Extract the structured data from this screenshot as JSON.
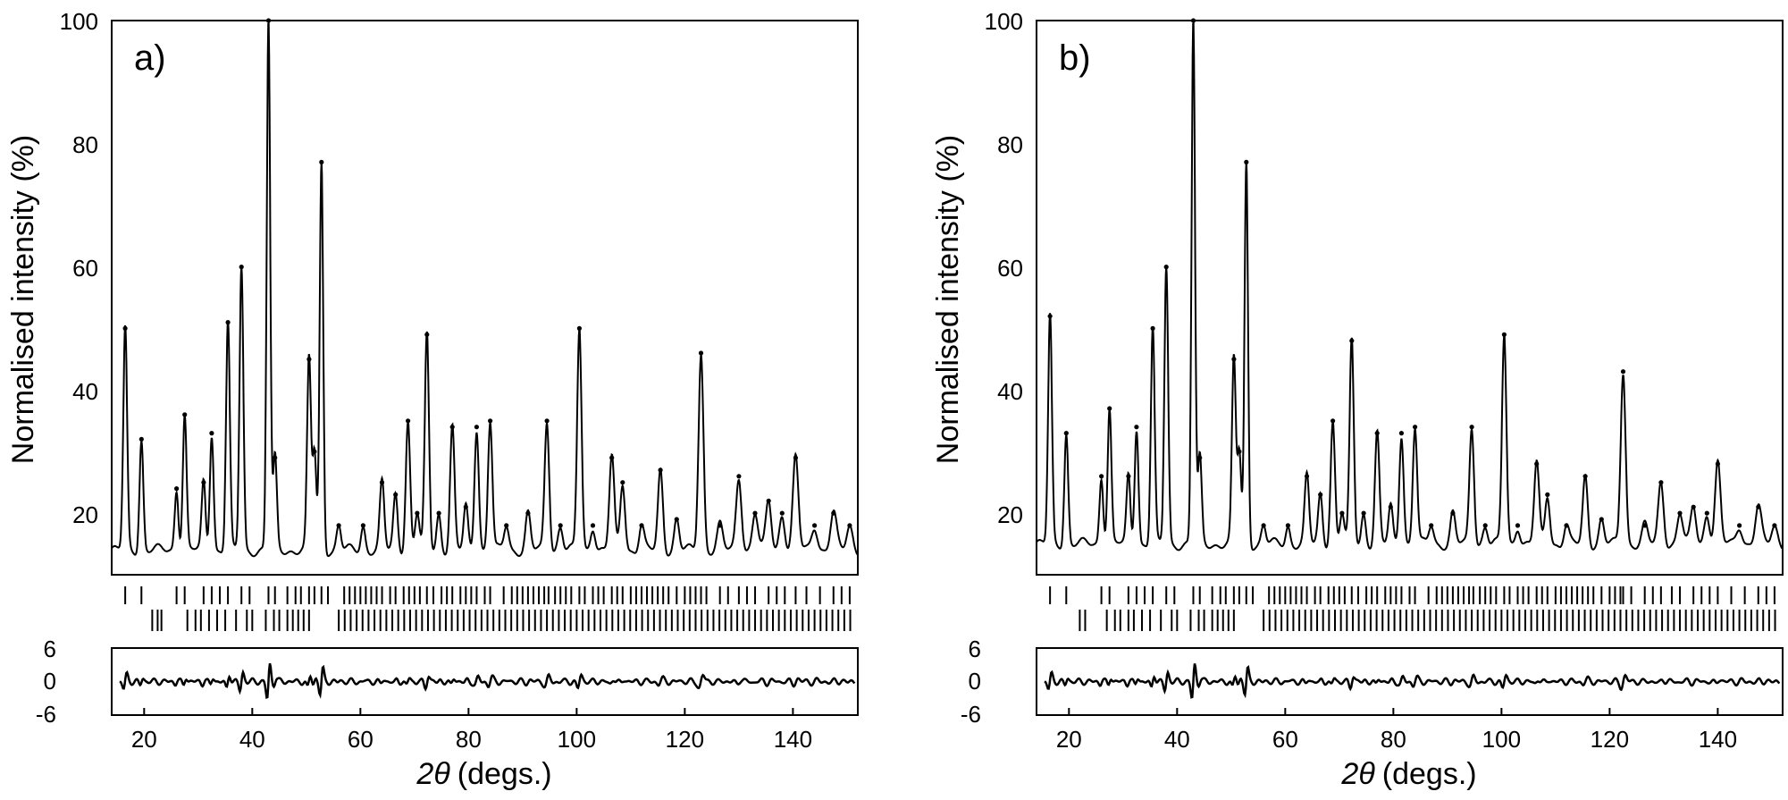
{
  "chart_data": [
    {
      "panel_label": "a)",
      "type": "line",
      "xlabel_symbol": "2θ",
      "xlabel_unit": "(degs.)",
      "ylabel": "Normalised intensity (%)",
      "xlim": [
        14,
        152
      ],
      "ylim": [
        10,
        100
      ],
      "x_ticks": [
        "20",
        "40",
        "60",
        "80",
        "100",
        "120",
        "140"
      ],
      "y_ticks": [
        "20",
        "40",
        "60",
        "80",
        "100"
      ],
      "diff_ylim": [
        -6,
        6
      ],
      "diff_ticks": [
        "6",
        "0",
        "-6"
      ],
      "background": 14,
      "peaks": [
        {
          "x": 16.5,
          "y": 50,
          "w": 0.35
        },
        {
          "x": 19.5,
          "y": 32,
          "w": 0.35
        },
        {
          "x": 26.0,
          "y": 24,
          "w": 0.35
        },
        {
          "x": 27.5,
          "y": 36,
          "w": 0.35
        },
        {
          "x": 31.0,
          "y": 25,
          "w": 0.35
        },
        {
          "x": 32.5,
          "y": 33,
          "w": 0.35
        },
        {
          "x": 35.5,
          "y": 51,
          "w": 0.35
        },
        {
          "x": 38.0,
          "y": 60,
          "w": 0.35
        },
        {
          "x": 43.0,
          "y": 100,
          "w": 0.32
        },
        {
          "x": 44.2,
          "y": 29,
          "w": 0.35
        },
        {
          "x": 50.5,
          "y": 45,
          "w": 0.35
        },
        {
          "x": 51.5,
          "y": 30,
          "w": 0.35
        },
        {
          "x": 52.8,
          "y": 77,
          "w": 0.32
        },
        {
          "x": 56.0,
          "y": 18,
          "w": 0.4
        },
        {
          "x": 60.5,
          "y": 18,
          "w": 0.4
        },
        {
          "x": 64.0,
          "y": 25,
          "w": 0.4
        },
        {
          "x": 66.5,
          "y": 23,
          "w": 0.4
        },
        {
          "x": 68.8,
          "y": 35,
          "w": 0.4
        },
        {
          "x": 70.5,
          "y": 20,
          "w": 0.4
        },
        {
          "x": 72.3,
          "y": 49,
          "w": 0.38
        },
        {
          "x": 74.5,
          "y": 20,
          "w": 0.4
        },
        {
          "x": 77.0,
          "y": 34,
          "w": 0.4
        },
        {
          "x": 79.5,
          "y": 21,
          "w": 0.4
        },
        {
          "x": 81.5,
          "y": 34,
          "w": 0.4
        },
        {
          "x": 84.0,
          "y": 35,
          "w": 0.4
        },
        {
          "x": 87.0,
          "y": 18,
          "w": 0.45
        },
        {
          "x": 91.0,
          "y": 20,
          "w": 0.45
        },
        {
          "x": 94.5,
          "y": 35,
          "w": 0.42
        },
        {
          "x": 97.0,
          "y": 18,
          "w": 0.45
        },
        {
          "x": 100.5,
          "y": 50,
          "w": 0.4
        },
        {
          "x": 103.0,
          "y": 18,
          "w": 0.45
        },
        {
          "x": 106.5,
          "y": 29,
          "w": 0.45
        },
        {
          "x": 108.5,
          "y": 25,
          "w": 0.45
        },
        {
          "x": 112.0,
          "y": 18,
          "w": 0.45
        },
        {
          "x": 115.5,
          "y": 27,
          "w": 0.45
        },
        {
          "x": 118.5,
          "y": 19,
          "w": 0.45
        },
        {
          "x": 123.0,
          "y": 46,
          "w": 0.45
        },
        {
          "x": 126.5,
          "y": 18,
          "w": 0.5
        },
        {
          "x": 130.0,
          "y": 26,
          "w": 0.5
        },
        {
          "x": 133.0,
          "y": 20,
          "w": 0.5
        },
        {
          "x": 135.5,
          "y": 22,
          "w": 0.5
        },
        {
          "x": 138.0,
          "y": 20,
          "w": 0.5
        },
        {
          "x": 140.5,
          "y": 29,
          "w": 0.5
        },
        {
          "x": 144.0,
          "y": 18,
          "w": 0.55
        },
        {
          "x": 147.5,
          "y": 20,
          "w": 0.55
        },
        {
          "x": 150.5,
          "y": 18,
          "w": 0.55
        }
      ],
      "reflections_phase1": [
        16.5,
        19.5,
        26.0,
        27.5,
        31.0,
        32.5,
        34.0,
        35.5,
        38.0,
        39.5,
        43.0,
        44.2,
        46.5,
        48.0,
        49.0,
        50.5,
        51.5,
        52.8,
        54.0,
        57.0,
        58.0,
        59.0,
        60.0,
        61.0,
        62.0,
        63.0,
        64.0,
        65.5,
        66.5,
        68.0,
        69.0,
        70.0,
        71.0,
        72.3,
        73.5,
        75.0,
        76.0,
        77.0,
        78.5,
        79.5,
        80.5,
        81.5,
        83.0,
        84.0,
        86.5,
        88.0,
        89.0,
        90.0,
        91.0,
        92.0,
        93.0,
        94.0,
        94.8,
        96.0,
        97.0,
        98.0,
        99.0,
        100.5,
        101.5,
        103.0,
        104.0,
        105.0,
        106.5,
        107.5,
        108.5,
        110.0,
        111.0,
        112.0,
        113.0,
        114.0,
        115.0,
        116.0,
        117.0,
        118.5,
        120.0,
        121.0,
        122.0,
        123.0,
        124.0,
        126.5,
        128.0,
        130.0,
        131.5,
        133.0,
        135.5,
        137.0,
        138.5,
        140.5,
        142.5,
        145.0,
        147.5,
        149.0,
        150.5
      ],
      "reflections_phase2": [
        21.5,
        22.5,
        23.2,
        28.0,
        29.5,
        30.5,
        32.0,
        33.5,
        35.0,
        37.0,
        39.0,
        40.0,
        42.5,
        44.0,
        45.0,
        46.5,
        47.5,
        48.5,
        49.5,
        50.5
      ]
    },
    {
      "panel_label": "b)",
      "type": "line",
      "xlabel_symbol": "2θ",
      "xlabel_unit": "(degs.)",
      "ylabel": "Normalised intensity (%)",
      "xlim": [
        14,
        152
      ],
      "ylim": [
        10,
        100
      ],
      "x_ticks": [
        "20",
        "40",
        "60",
        "80",
        "100",
        "120",
        "140"
      ],
      "y_ticks": [
        "20",
        "40",
        "60",
        "80",
        "100"
      ],
      "diff_ylim": [
        -6,
        6
      ],
      "diff_ticks": [
        "6",
        "0",
        "-6"
      ],
      "background": 15,
      "peaks": [
        {
          "x": 16.5,
          "y": 52,
          "w": 0.35
        },
        {
          "x": 19.5,
          "y": 33,
          "w": 0.35
        },
        {
          "x": 26.0,
          "y": 26,
          "w": 0.35
        },
        {
          "x": 27.5,
          "y": 37,
          "w": 0.35
        },
        {
          "x": 31.0,
          "y": 26,
          "w": 0.35
        },
        {
          "x": 32.5,
          "y": 34,
          "w": 0.35
        },
        {
          "x": 35.5,
          "y": 50,
          "w": 0.35
        },
        {
          "x": 38.0,
          "y": 60,
          "w": 0.35
        },
        {
          "x": 43.0,
          "y": 100,
          "w": 0.32
        },
        {
          "x": 44.2,
          "y": 29,
          "w": 0.35
        },
        {
          "x": 50.5,
          "y": 45,
          "w": 0.35
        },
        {
          "x": 51.5,
          "y": 30,
          "w": 0.35
        },
        {
          "x": 52.8,
          "y": 77,
          "w": 0.32
        },
        {
          "x": 56.0,
          "y": 18,
          "w": 0.4
        },
        {
          "x": 60.5,
          "y": 18,
          "w": 0.4
        },
        {
          "x": 64.0,
          "y": 26,
          "w": 0.4
        },
        {
          "x": 66.5,
          "y": 23,
          "w": 0.4
        },
        {
          "x": 68.8,
          "y": 35,
          "w": 0.4
        },
        {
          "x": 70.5,
          "y": 20,
          "w": 0.4
        },
        {
          "x": 72.3,
          "y": 48,
          "w": 0.38
        },
        {
          "x": 74.5,
          "y": 20,
          "w": 0.4
        },
        {
          "x": 77.0,
          "y": 33,
          "w": 0.4
        },
        {
          "x": 79.5,
          "y": 21,
          "w": 0.4
        },
        {
          "x": 81.5,
          "y": 33,
          "w": 0.4
        },
        {
          "x": 84.0,
          "y": 34,
          "w": 0.4
        },
        {
          "x": 87.0,
          "y": 18,
          "w": 0.45
        },
        {
          "x": 91.0,
          "y": 20,
          "w": 0.45
        },
        {
          "x": 94.5,
          "y": 34,
          "w": 0.42
        },
        {
          "x": 97.0,
          "y": 18,
          "w": 0.45
        },
        {
          "x": 100.5,
          "y": 49,
          "w": 0.4
        },
        {
          "x": 103.0,
          "y": 18,
          "w": 0.45
        },
        {
          "x": 106.5,
          "y": 28,
          "w": 0.45
        },
        {
          "x": 108.5,
          "y": 23,
          "w": 0.45
        },
        {
          "x": 112.0,
          "y": 18,
          "w": 0.45
        },
        {
          "x": 115.5,
          "y": 26,
          "w": 0.45
        },
        {
          "x": 118.5,
          "y": 19,
          "w": 0.45
        },
        {
          "x": 122.5,
          "y": 43,
          "w": 0.45
        },
        {
          "x": 126.5,
          "y": 18,
          "w": 0.5
        },
        {
          "x": 129.5,
          "y": 25,
          "w": 0.5
        },
        {
          "x": 133.0,
          "y": 20,
          "w": 0.5
        },
        {
          "x": 135.5,
          "y": 21,
          "w": 0.5
        },
        {
          "x": 138.0,
          "y": 20,
          "w": 0.5
        },
        {
          "x": 140.0,
          "y": 28,
          "w": 0.5
        },
        {
          "x": 144.0,
          "y": 18,
          "w": 0.55
        },
        {
          "x": 147.5,
          "y": 21,
          "w": 0.55
        },
        {
          "x": 150.5,
          "y": 18,
          "w": 0.55
        }
      ],
      "reflections_phase1": [
        16.5,
        19.5,
        26.0,
        27.5,
        31.0,
        32.5,
        34.0,
        35.5,
        38.0,
        39.5,
        43.0,
        44.2,
        46.5,
        48.0,
        49.0,
        50.5,
        51.5,
        52.8,
        54.0,
        57.0,
        58.0,
        59.0,
        60.0,
        61.0,
        62.0,
        63.0,
        64.0,
        65.5,
        66.5,
        68.0,
        69.0,
        70.0,
        71.0,
        72.3,
        73.5,
        75.0,
        76.0,
        77.0,
        78.5,
        79.5,
        80.5,
        81.5,
        83.0,
        84.0,
        86.5,
        88.0,
        89.0,
        90.0,
        91.0,
        92.0,
        93.0,
        94.0,
        94.8,
        96.0,
        97.0,
        98.0,
        99.0,
        100.5,
        101.5,
        103.0,
        104.0,
        105.0,
        106.5,
        107.5,
        108.5,
        110.0,
        111.0,
        112.0,
        113.0,
        114.0,
        115.0,
        116.0,
        117.0,
        118.5,
        120.0,
        121.0,
        122.0,
        122.5,
        124.0,
        126.5,
        128.0,
        129.5,
        131.5,
        133.0,
        135.5,
        137.0,
        138.5,
        140.0,
        142.5,
        145.0,
        147.5,
        149.0,
        150.5
      ],
      "reflections_phase2": [
        22.0,
        23.0,
        27.0,
        28.5,
        29.5,
        31.0,
        32.0,
        33.5,
        35.0,
        37.0,
        39.0,
        40.0,
        42.5,
        44.0,
        45.0,
        46.5,
        47.5,
        48.5,
        49.5,
        50.5
      ]
    }
  ]
}
